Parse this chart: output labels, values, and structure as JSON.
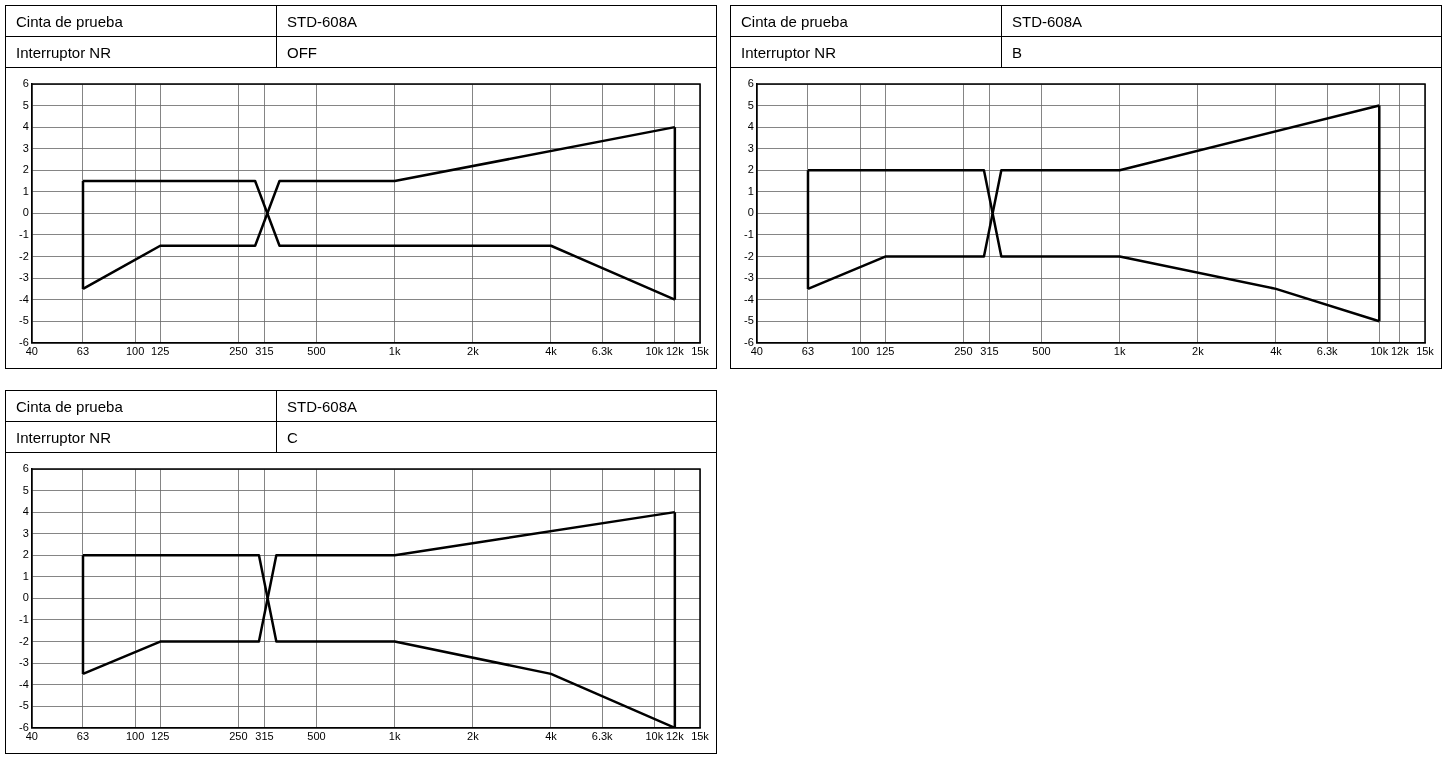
{
  "chart_data": [
    {
      "type": "line",
      "annotations": [
        "Cinta de prueba",
        "STD-608A",
        "Interruptor NR",
        "OFF"
      ],
      "log": "x",
      "grid": true,
      "marker": "none",
      "legend": false,
      "xlim": [
        40,
        15000
      ],
      "xticks": [
        40,
        63,
        100,
        125,
        250,
        315,
        500,
        {
          "value": 1000,
          "label": "1k"
        },
        {
          "value": 2000,
          "label": "2k"
        },
        {
          "value": 4000,
          "label": "4k"
        },
        {
          "value": 6300,
          "label": "6.3k"
        },
        {
          "value": 10000,
          "label": "10k"
        },
        {
          "value": 12000,
          "label": "12k"
        },
        {
          "value": 15000,
          "label": "15k"
        }
      ],
      "ylim": [
        -6,
        6
      ],
      "yticks": [
        -6,
        -5,
        -4,
        -3,
        -2,
        -1,
        0,
        1,
        2,
        3,
        4,
        5,
        6
      ],
      "series": [
        {
          "color": "#000000",
          "x": [
            63,
            290,
            360,
            4000,
            12000
          ],
          "values": [
            1.5,
            1.5,
            -1.5,
            -1.5,
            -4
          ]
        },
        {
          "color": "#000000",
          "x": [
            63,
            125,
            290,
            360,
            1000,
            12000
          ],
          "values": [
            -3.5,
            -1.5,
            -1.5,
            1.5,
            1.5,
            4
          ]
        },
        {
          "color": "#000000",
          "x": [
            63,
            63
          ],
          "values": [
            -3.5,
            1.5
          ]
        },
        {
          "color": "#000000",
          "x": [
            12000,
            12000
          ],
          "values": [
            -4,
            4
          ]
        }
      ]
    },
    {
      "type": "line",
      "annotations": [
        "Cinta de prueba",
        "STD-608A",
        "Interruptor NR",
        "B"
      ],
      "log": "x",
      "grid": true,
      "marker": "none",
      "legend": false,
      "xlim": [
        40,
        15000
      ],
      "xticks": [
        40,
        63,
        100,
        125,
        250,
        315,
        500,
        {
          "value": 1000,
          "label": "1k"
        },
        {
          "value": 2000,
          "label": "2k"
        },
        {
          "value": 4000,
          "label": "4k"
        },
        {
          "value": 6300,
          "label": "6.3k"
        },
        {
          "value": 10000,
          "label": "10k"
        },
        {
          "value": 12000,
          "label": "12k"
        },
        {
          "value": 15000,
          "label": "15k"
        }
      ],
      "ylim": [
        -6,
        6
      ],
      "yticks": [
        -6,
        -5,
        -4,
        -3,
        -2,
        -1,
        0,
        1,
        2,
        3,
        4,
        5,
        6
      ],
      "series": [
        {
          "color": "#000000",
          "x": [
            63,
            300,
            350,
            1000,
            4000,
            10000
          ],
          "values": [
            2,
            2,
            -2,
            -2,
            -3.5,
            -5
          ]
        },
        {
          "color": "#000000",
          "x": [
            63,
            125,
            300,
            350,
            1000,
            10000
          ],
          "values": [
            -3.5,
            -2,
            -2,
            2,
            2,
            5
          ]
        },
        {
          "color": "#000000",
          "x": [
            63,
            63
          ],
          "values": [
            -3.5,
            2
          ]
        },
        {
          "color": "#000000",
          "x": [
            10000,
            10000
          ],
          "values": [
            -5,
            5
          ]
        }
      ]
    },
    {
      "type": "line",
      "annotations": [
        "Cinta de prueba",
        "STD-608A",
        "Interruptor NR",
        "C"
      ],
      "log": "x",
      "grid": true,
      "marker": "none",
      "legend": false,
      "xlim": [
        40,
        15000
      ],
      "xticks": [
        40,
        63,
        100,
        125,
        250,
        315,
        500,
        {
          "value": 1000,
          "label": "1k"
        },
        {
          "value": 2000,
          "label": "2k"
        },
        {
          "value": 4000,
          "label": "4k"
        },
        {
          "value": 6300,
          "label": "6.3k"
        },
        {
          "value": 10000,
          "label": "10k"
        },
        {
          "value": 12000,
          "label": "12k"
        },
        {
          "value": 15000,
          "label": "15k"
        }
      ],
      "ylim": [
        -6,
        6
      ],
      "yticks": [
        -6,
        -5,
        -4,
        -3,
        -2,
        -1,
        0,
        1,
        2,
        3,
        4,
        5,
        6
      ],
      "series": [
        {
          "color": "#000000",
          "x": [
            63,
            300,
            350,
            1000,
            4000,
            12000
          ],
          "values": [
            2,
            2,
            -2,
            -2,
            -3.5,
            -6
          ]
        },
        {
          "color": "#000000",
          "x": [
            63,
            125,
            300,
            350,
            1000,
            12000
          ],
          "values": [
            -3.5,
            -2,
            -2,
            2,
            2,
            4
          ]
        },
        {
          "color": "#000000",
          "x": [
            63,
            63
          ],
          "values": [
            -3.5,
            2
          ]
        },
        {
          "color": "#000000",
          "x": [
            12000,
            12000
          ],
          "values": [
            -6,
            4
          ]
        }
      ]
    }
  ]
}
